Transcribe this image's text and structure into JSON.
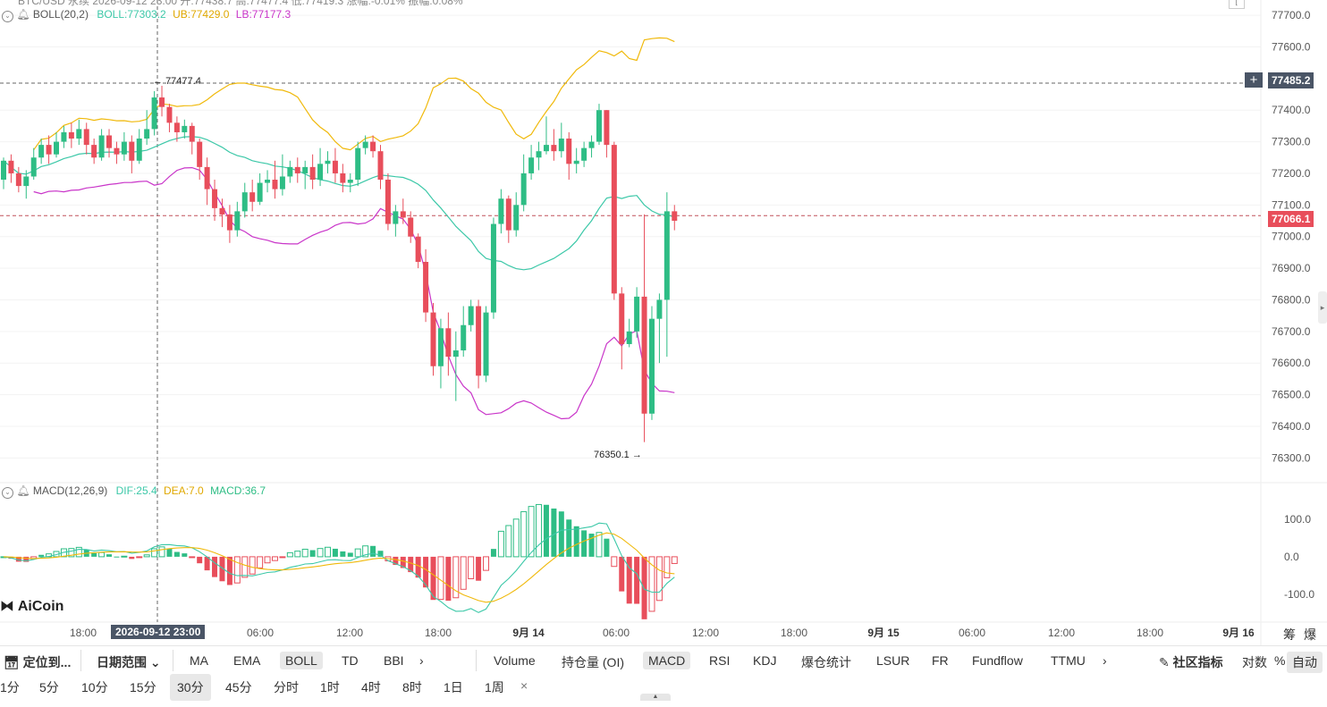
{
  "header": {
    "top_fragment": "BTC/USD 永续 2026-09-12 23:00  开:77438.7  高:77477.4  低:77419.3  涨幅:-0.01%  振幅:0.08%"
  },
  "boll_legend": {
    "name": "BOLL(20,2)",
    "boll": "BOLL:77303.2",
    "ub": "UB:77429.0",
    "lb": "LB:77177.3"
  },
  "macd_legend": {
    "name": "MACD(12,26,9)",
    "dif": "DIF:25.4",
    "dea": "DEA:7.0",
    "macd": "MACD:36.7"
  },
  "price_axis": [
    "77700.0",
    "77600.0",
    "77400.0",
    "77300.0",
    "77200.0",
    "77100.0",
    "77000.0",
    "76900.0",
    "76800.0",
    "76700.0",
    "76600.0",
    "76500.0",
    "76400.0",
    "76300.0"
  ],
  "macd_axis": [
    "100.0",
    "0.0",
    "-100.0"
  ],
  "crosshair_price_tag": "77485.2",
  "last_price_tag": "77066.1",
  "high_marker": "77477.4",
  "low_marker": "76350.1",
  "time_axis": [
    "18:00",
    "06:00",
    "12:00",
    "18:00",
    "9月 14",
    "06:00",
    "12:00",
    "18:00",
    "9月 15",
    "06:00",
    "12:00",
    "18:00",
    "9月 16"
  ],
  "crosshair_time_tag": "2026-09-12 23:00",
  "axis_corner": [
    "筹",
    "爆"
  ],
  "watermark": "AiCoin",
  "toolbar": {
    "locate": "定位到...",
    "date_range": "日期范围",
    "main_indicators": [
      "MA",
      "EMA",
      "BOLL",
      "TD",
      "BBI"
    ],
    "sub_indicators": [
      "Volume",
      "持仓量 (OI)",
      "MACD",
      "RSI",
      "KDJ",
      "爆仓统计",
      "LSUR",
      "FR",
      "Fundflow",
      "TTMU"
    ],
    "community": "社区指标",
    "log": "对数",
    "percent": "%",
    "auto": "自动"
  },
  "intervals": [
    "1分",
    "5分",
    "10分",
    "15分",
    "30分",
    "45分",
    "分时",
    "1时",
    "4时",
    "8时",
    "1日",
    "1周"
  ],
  "colors": {
    "up": "#2ebd85",
    "down": "#e84e5b",
    "ub": "#f0b90b",
    "mid": "#3cc8a8",
    "lb": "#c935c9",
    "dea": "#f0b90b",
    "dif": "#3cc8a8",
    "tag_dark": "#4a5566",
    "tag_red": "#e84e5b"
  },
  "chart_data": {
    "type": "candlestick",
    "boll": {
      "period": 20,
      "k": 2
    },
    "candles": [
      [
        77180,
        77240,
        77150,
        77250
      ],
      [
        77240,
        77200,
        77170,
        77260
      ],
      [
        77200,
        77160,
        77140,
        77220
      ],
      [
        77160,
        77190,
        77120,
        77210
      ],
      [
        77190,
        77250,
        77180,
        77280
      ],
      [
        77250,
        77290,
        77230,
        77310
      ],
      [
        77290,
        77260,
        77230,
        77320
      ],
      [
        77260,
        77300,
        77250,
        77330
      ],
      [
        77300,
        77330,
        77280,
        77350
      ],
      [
        77330,
        77310,
        77280,
        77360
      ],
      [
        77310,
        77340,
        77290,
        77370
      ],
      [
        77340,
        77290,
        77260,
        77360
      ],
      [
        77290,
        77250,
        77230,
        77310
      ],
      [
        77250,
        77320,
        77240,
        77340
      ],
      [
        77320,
        77280,
        77250,
        77340
      ],
      [
        77280,
        77260,
        77230,
        77300
      ],
      [
        77260,
        77300,
        77240,
        77330
      ],
      [
        77300,
        77240,
        77200,
        77320
      ],
      [
        77240,
        77310,
        77230,
        77340
      ],
      [
        77310,
        77340,
        77290,
        77400
      ],
      [
        77340,
        77440,
        77320,
        77460
      ],
      [
        77440,
        77410,
        77380,
        77477
      ],
      [
        77410,
        77360,
        77330,
        77420
      ],
      [
        77360,
        77330,
        77300,
        77380
      ],
      [
        77330,
        77350,
        77310,
        77370
      ],
      [
        77350,
        77300,
        77260,
        77360
      ],
      [
        77300,
        77220,
        77180,
        77310
      ],
      [
        77220,
        77150,
        77100,
        77250
      ],
      [
        77150,
        77090,
        77050,
        77180
      ],
      [
        77090,
        77070,
        77030,
        77120
      ],
      [
        77070,
        77020,
        76980,
        77100
      ],
      [
        77020,
        77080,
        77000,
        77110
      ],
      [
        77080,
        77140,
        77060,
        77170
      ],
      [
        77140,
        77110,
        77080,
        77180
      ],
      [
        77110,
        77170,
        77100,
        77200
      ],
      [
        77170,
        77180,
        77140,
        77210
      ],
      [
        77180,
        77150,
        77120,
        77240
      ],
      [
        77150,
        77190,
        77130,
        77260
      ],
      [
        77190,
        77220,
        77170,
        77240
      ],
      [
        77220,
        77200,
        77170,
        77250
      ],
      [
        77200,
        77220,
        77150,
        77240
      ],
      [
        77220,
        77180,
        77150,
        77260
      ],
      [
        77180,
        77230,
        77160,
        77280
      ],
      [
        77230,
        77240,
        77200,
        77270
      ],
      [
        77240,
        77200,
        77170,
        77280
      ],
      [
        77200,
        77170,
        77140,
        77230
      ],
      [
        77170,
        77180,
        77140,
        77200
      ],
      [
        77180,
        77280,
        77160,
        77300
      ],
      [
        77280,
        77300,
        77260,
        77320
      ],
      [
        77300,
        77270,
        77250,
        77320
      ],
      [
        77270,
        77180,
        77150,
        77290
      ],
      [
        77180,
        77040,
        77020,
        77200
      ],
      [
        77040,
        77080,
        77000,
        77100
      ],
      [
        77080,
        77060,
        77040,
        77120
      ],
      [
        77060,
        77000,
        76980,
        77080
      ],
      [
        77000,
        76920,
        76900,
        77010
      ],
      [
        76920,
        76760,
        76730,
        76960
      ],
      [
        76760,
        76590,
        76560,
        76790
      ],
      [
        76590,
        76710,
        76520,
        76740
      ],
      [
        76710,
        76620,
        76560,
        76760
      ],
      [
        76620,
        76640,
        76480,
        76700
      ],
      [
        76640,
        76720,
        76620,
        76780
      ],
      [
        76720,
        76780,
        76700,
        76800
      ],
      [
        76780,
        76560,
        76520,
        76800
      ],
      [
        76560,
        76760,
        76540,
        76780
      ],
      [
        76760,
        77040,
        76740,
        77060
      ],
      [
        77040,
        77120,
        77010,
        77150
      ],
      [
        77120,
        77020,
        76980,
        77130
      ],
      [
        77020,
        77100,
        77000,
        77140
      ],
      [
        77100,
        77200,
        77080,
        77260
      ],
      [
        77200,
        77250,
        77180,
        77290
      ],
      [
        77250,
        77270,
        77210,
        77300
      ],
      [
        77270,
        77290,
        77260,
        77380
      ],
      [
        77290,
        77270,
        77240,
        77340
      ],
      [
        77270,
        77310,
        77250,
        77360
      ],
      [
        77310,
        77230,
        77180,
        77330
      ],
      [
        77230,
        77240,
        77200,
        77280
      ],
      [
        77240,
        77280,
        77220,
        77300
      ],
      [
        77280,
        77300,
        77250,
        77320
      ],
      [
        77300,
        77400,
        77290,
        77420
      ],
      [
        77400,
        77290,
        77250,
        77400
      ],
      [
        77290,
        76820,
        76800,
        77300
      ],
      [
        76820,
        76660,
        76580,
        76840
      ],
      [
        76660,
        76700,
        76650,
        76740
      ],
      [
        76700,
        76810,
        76680,
        76840
      ],
      [
        76810,
        76440,
        76350,
        77070
      ],
      [
        76440,
        76740,
        76420,
        76780
      ],
      [
        76740,
        76800,
        76600,
        76820
      ],
      [
        76800,
        77080,
        76620,
        77140
      ],
      [
        77080,
        77050,
        77020,
        77100
      ]
    ],
    "high_label": 77477.4,
    "low_label": 76350.1,
    "last": 77066.1,
    "ylim": [
      76250,
      77720
    ],
    "macd_ylim": [
      -160,
      150
    ]
  }
}
